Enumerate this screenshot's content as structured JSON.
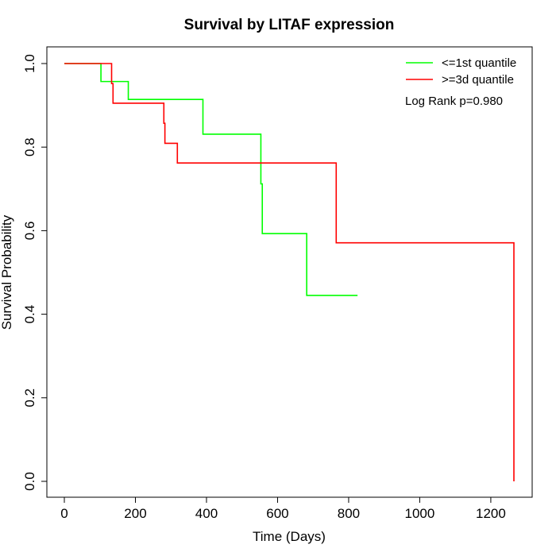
{
  "chart_data": {
    "type": "line",
    "title": "Survival by LITAF expression",
    "xlabel": "Time (Days)",
    "ylabel": "Survival Probability",
    "xlim": [
      0,
      1265
    ],
    "ylim": [
      0,
      1.0
    ],
    "xticks": [
      0,
      200,
      400,
      600,
      800,
      1000,
      1200
    ],
    "yticks": [
      0.0,
      0.2,
      0.4,
      0.6,
      0.8,
      1.0
    ],
    "xtick_labels": [
      "0",
      "200",
      "400",
      "600",
      "800",
      "1000",
      "1200"
    ],
    "ytick_labels": [
      "0.0",
      "0.2",
      "0.4",
      "0.6",
      "0.8",
      "1.0"
    ],
    "grid": false,
    "legend_position": "top-right",
    "annotation": "Log Rank p=0.980",
    "series": [
      {
        "name": "<=1st quantile",
        "color": "#00ff00",
        "step": true,
        "x": [
          0,
          103,
          180,
          390,
          553,
          557,
          682,
          825
        ],
        "y": [
          1.0,
          0.957,
          0.914,
          0.831,
          0.712,
          0.593,
          0.445,
          0.445
        ]
      },
      {
        "name": ">=3d quantile",
        "color": "#ff0000",
        "step": true,
        "x": [
          0,
          133,
          137,
          280,
          283,
          318,
          765,
          1265,
          1265
        ],
        "y": [
          1.0,
          0.952,
          0.905,
          0.857,
          0.809,
          0.762,
          0.571,
          0.571,
          0.0
        ]
      }
    ]
  }
}
